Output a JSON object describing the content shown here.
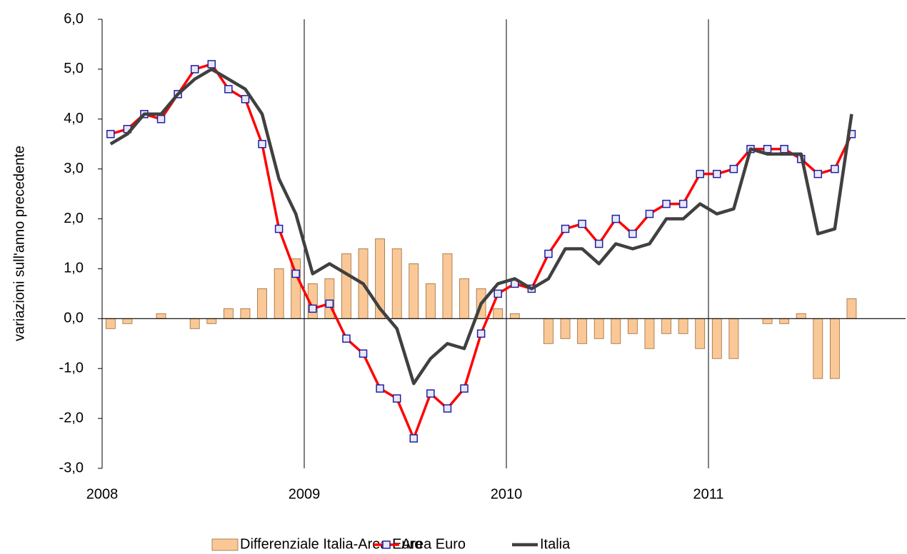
{
  "chart_data": {
    "type": "bar-line",
    "y_label": "variazioni sull'anno precedente",
    "categories": [
      "2008",
      null,
      null,
      null,
      null,
      null,
      null,
      null,
      null,
      null,
      null,
      null,
      "2009",
      null,
      null,
      null,
      null,
      null,
      null,
      null,
      null,
      null,
      null,
      null,
      "2010",
      null,
      null,
      null,
      null,
      null,
      null,
      null,
      null,
      null,
      null,
      null,
      "2011",
      null,
      null,
      null,
      null,
      null,
      null,
      null,
      null
    ],
    "series": [
      {
        "name": "Differenziale Italia-Area Euro",
        "kind": "bar",
        "color": "#fac896",
        "values": [
          -0.2,
          -0.1,
          0,
          0.1,
          0,
          -0.2,
          -0.1,
          0.2,
          0.2,
          0.6,
          1.0,
          1.2,
          0.7,
          0.8,
          1.3,
          1.4,
          1.6,
          1.4,
          1.1,
          0.7,
          1.3,
          0.8,
          0.6,
          0.2,
          0.1,
          0,
          -0.5,
          -0.4,
          -0.5,
          -0.4,
          -0.5,
          -0.3,
          -0.6,
          -0.3,
          -0.3,
          -0.6,
          -0.8,
          -0.8,
          0,
          -0.1,
          -0.1,
          0.1,
          -1.2,
          -1.2,
          0.4
        ]
      },
      {
        "name": "Area Euro",
        "kind": "line",
        "color": "#ff0000",
        "marker_color": "#1f1fa0",
        "values": [
          3.7,
          3.8,
          4.1,
          4.0,
          4.5,
          5.0,
          5.1,
          4.6,
          4.4,
          3.5,
          1.8,
          0.9,
          0.2,
          0.3,
          -0.4,
          -0.7,
          -1.4,
          -1.6,
          -2.4,
          -1.5,
          -1.8,
          -1.4,
          -0.3,
          0.5,
          0.7,
          0.6,
          1.3,
          1.8,
          1.9,
          1.5,
          2.0,
          1.7,
          2.1,
          2.3,
          2.3,
          2.9,
          2.9,
          3.0,
          3.4,
          3.4,
          3.4,
          3.2,
          2.9,
          3.0,
          3.7
        ]
      },
      {
        "name": "Italia",
        "kind": "line",
        "color": "#404040",
        "values": [
          3.5,
          3.7,
          4.1,
          4.1,
          4.5,
          4.8,
          5.0,
          4.8,
          4.6,
          4.1,
          2.8,
          2.1,
          0.9,
          1.1,
          0.9,
          0.7,
          0.2,
          -0.2,
          -1.3,
          -0.8,
          -0.5,
          -0.6,
          0.3,
          0.7,
          0.8,
          0.6,
          0.8,
          1.4,
          1.4,
          1.1,
          1.5,
          1.4,
          1.5,
          2.0,
          2.0,
          2.3,
          2.1,
          2.2,
          3.4,
          3.3,
          3.3,
          3.3,
          1.7,
          1.8,
          4.1
        ]
      }
    ],
    "ylim": [
      -3,
      6
    ],
    "yticks": [
      {
        "value": -3,
        "label": "-3,0"
      },
      {
        "value": -2,
        "label": "-2,0"
      },
      {
        "value": -1,
        "label": "-1,0"
      },
      {
        "value": 0,
        "label": "0,0"
      },
      {
        "value": 1,
        "label": "1,0"
      },
      {
        "value": 2,
        "label": "2,0"
      },
      {
        "value": 3,
        "label": "3,0"
      },
      {
        "value": 4,
        "label": "4,0"
      },
      {
        "value": 5,
        "label": "5,0"
      },
      {
        "value": 6,
        "label": "6,0"
      }
    ],
    "legend": "bottom"
  }
}
